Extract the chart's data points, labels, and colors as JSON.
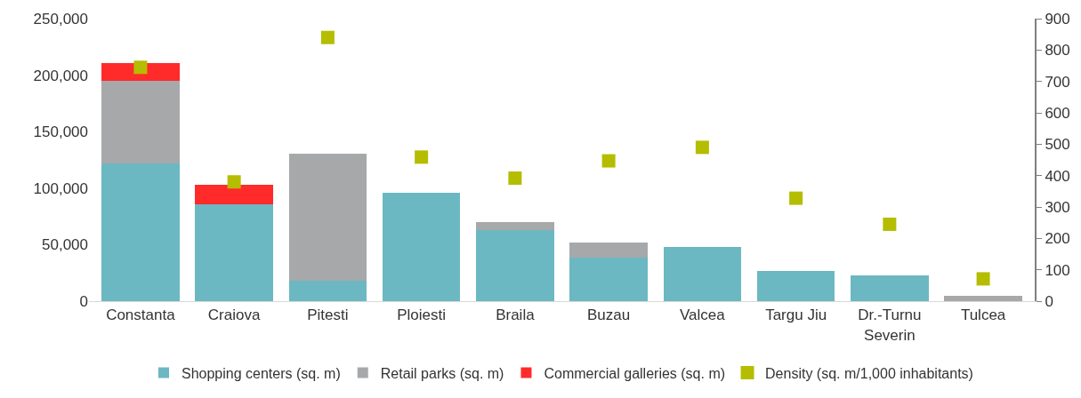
{
  "chart_data": {
    "type": "bar",
    "stacked": true,
    "categories": [
      "Constanta",
      "Craiova",
      "Pitesti",
      "Ploiesti",
      "Braila",
      "Buzau",
      "Valcea",
      "Targu Jiu",
      "Dr.-Turnu\nSeverin",
      "Tulcea"
    ],
    "series": [
      {
        "name": "Shopping centers (sq. m)",
        "color": "#6bb8c2",
        "values": [
          122000,
          86000,
          18300,
          96100,
          62600,
          38300,
          48200,
          27000,
          22600,
          null
        ]
      },
      {
        "name": "Retail parks (sq. m)",
        "color": "#a7a8aa",
        "values": [
          73000,
          null,
          112000,
          null,
          7700,
          13500,
          null,
          null,
          null,
          4800
        ]
      },
      {
        "name": "Commercial galleries (sq. m)",
        "color": "#ff2b2b",
        "values": [
          16000,
          16600,
          null,
          null,
          null,
          null,
          null,
          null,
          null,
          null
        ]
      },
      {
        "name": "Density (sq. m/1,000 inhabitants)",
        "color": "#b5bd00",
        "type": "scatter",
        "axis": "y2",
        "marker": "square",
        "values": [
          745,
          380,
          840,
          459,
          392,
          447,
          490,
          328,
          245,
          71
        ]
      }
    ],
    "ylim": [
      0,
      250000
    ],
    "yticks": [
      0,
      {
        "value": 50000,
        "label": "50,000"
      },
      {
        "value": 100000,
        "label": "100,000"
      },
      {
        "value": 150000,
        "label": "150,000"
      },
      {
        "value": 200000,
        "label": "200,000"
      },
      {
        "value": 250000,
        "label": "250,000"
      }
    ],
    "y2lim": [
      0,
      900
    ],
    "y2ticks": [
      0,
      100,
      200,
      300,
      400,
      500,
      600,
      700,
      800,
      900
    ],
    "legend": "bottom"
  }
}
